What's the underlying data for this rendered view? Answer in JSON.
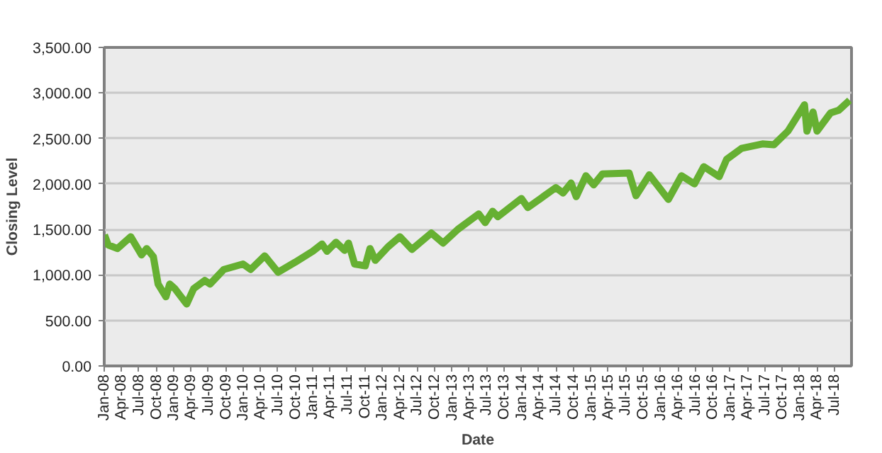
{
  "chart_data": {
    "type": "line",
    "xlabel": "Date",
    "ylabel": "Closing Level",
    "grid": "y",
    "marker": "none",
    "line_style": "solid",
    "xlim": [
      "2008-01-01",
      "2018-09-30"
    ],
    "xticks": [
      {
        "value": "2008-01-01",
        "label": "Jan-08"
      },
      {
        "value": "2008-04-01",
        "label": "Apr-08"
      },
      {
        "value": "2008-07-01",
        "label": "Jul-08"
      },
      {
        "value": "2008-10-01",
        "label": "Oct-08"
      },
      {
        "value": "2009-01-01",
        "label": "Jan-09"
      },
      {
        "value": "2009-04-01",
        "label": "Apr-09"
      },
      {
        "value": "2009-07-01",
        "label": "Jul-09"
      },
      {
        "value": "2009-10-01",
        "label": "Oct-09"
      },
      {
        "value": "2010-01-01",
        "label": "Jan-10"
      },
      {
        "value": "2010-04-01",
        "label": "Apr-10"
      },
      {
        "value": "2010-07-01",
        "label": "Jul-10"
      },
      {
        "value": "2010-10-01",
        "label": "Oct-10"
      },
      {
        "value": "2011-01-01",
        "label": "Jan-11"
      },
      {
        "value": "2011-04-01",
        "label": "Apr-11"
      },
      {
        "value": "2011-07-01",
        "label": "Jul-11"
      },
      {
        "value": "2011-10-01",
        "label": "Oct-11"
      },
      {
        "value": "2012-01-01",
        "label": "Jan-12"
      },
      {
        "value": "2012-04-01",
        "label": "Apr-12"
      },
      {
        "value": "2012-07-01",
        "label": "Jul-12"
      },
      {
        "value": "2012-10-01",
        "label": "Oct-12"
      },
      {
        "value": "2013-01-01",
        "label": "Jan-13"
      },
      {
        "value": "2013-04-01",
        "label": "Apr-13"
      },
      {
        "value": "2013-07-01",
        "label": "Jul-13"
      },
      {
        "value": "2013-10-01",
        "label": "Oct-13"
      },
      {
        "value": "2014-01-01",
        "label": "Jan-14"
      },
      {
        "value": "2014-04-01",
        "label": "Apr-14"
      },
      {
        "value": "2014-07-01",
        "label": "Jul-14"
      },
      {
        "value": "2014-10-01",
        "label": "Oct-14"
      },
      {
        "value": "2015-01-01",
        "label": "Jan-15"
      },
      {
        "value": "2015-04-01",
        "label": "Apr-15"
      },
      {
        "value": "2015-07-01",
        "label": "Jul-15"
      },
      {
        "value": "2015-10-01",
        "label": "Oct-15"
      },
      {
        "value": "2016-01-01",
        "label": "Jan-16"
      },
      {
        "value": "2016-04-01",
        "label": "Apr-16"
      },
      {
        "value": "2016-07-01",
        "label": "Jul-16"
      },
      {
        "value": "2016-10-01",
        "label": "Oct-16"
      },
      {
        "value": "2017-01-01",
        "label": "Jan-17"
      },
      {
        "value": "2017-04-01",
        "label": "Apr-17"
      },
      {
        "value": "2017-07-01",
        "label": "Jul-17"
      },
      {
        "value": "2017-10-01",
        "label": "Oct-17"
      },
      {
        "value": "2018-01-01",
        "label": "Jan-18"
      },
      {
        "value": "2018-04-01",
        "label": "Apr-18"
      },
      {
        "value": "2018-07-01",
        "label": "Jul-18"
      }
    ],
    "ylim": [
      0,
      3500
    ],
    "yticks": [
      {
        "value": 0,
        "label": "0.00"
      },
      {
        "value": 500,
        "label": "500.00"
      },
      {
        "value": 1000,
        "label": "1,000.00"
      },
      {
        "value": 1500,
        "label": "1,500.00"
      },
      {
        "value": 2000,
        "label": "2,000.00"
      },
      {
        "value": 2500,
        "label": "2,500.00"
      },
      {
        "value": 3000,
        "label": "3,000.00"
      },
      {
        "value": 3500,
        "label": "3,500.00"
      }
    ],
    "series": [
      {
        "color": "#66b032",
        "x": [
          "2008-01-02",
          "2008-01-22",
          "2008-03-10",
          "2008-05-19",
          "2008-07-15",
          "2008-08-11",
          "2008-09-15",
          "2008-10-10",
          "2008-11-20",
          "2008-12-10",
          "2009-01-06",
          "2009-03-09",
          "2009-04-15",
          "2009-06-12",
          "2009-07-10",
          "2009-09-20",
          "2009-12-30",
          "2010-02-08",
          "2010-04-23",
          "2010-07-02",
          "2010-09-30",
          "2010-12-31",
          "2011-02-18",
          "2011-03-16",
          "2011-05-02",
          "2011-06-16",
          "2011-07-07",
          "2011-08-08",
          "2011-10-03",
          "2011-10-28",
          "2011-11-25",
          "2012-01-31",
          "2012-04-02",
          "2012-06-04",
          "2012-09-14",
          "2012-11-15",
          "2013-01-31",
          "2013-05-21",
          "2013-06-24",
          "2013-08-02",
          "2013-08-30",
          "2013-12-31",
          "2014-02-03",
          "2014-06-30",
          "2014-08-07",
          "2014-09-18",
          "2014-10-15",
          "2014-12-05",
          "2015-01-15",
          "2015-03-02",
          "2015-07-20",
          "2015-08-25",
          "2015-11-03",
          "2016-02-11",
          "2016-04-20",
          "2016-06-27",
          "2016-08-15",
          "2016-11-04",
          "2016-12-13",
          "2017-03-01",
          "2017-06-19",
          "2017-08-18",
          "2017-10-31",
          "2018-01-26",
          "2018-02-08",
          "2018-03-12",
          "2018-04-02",
          "2018-06-12",
          "2018-07-25",
          "2018-09-20"
        ],
        "values": [
          1440,
          1330,
          1290,
          1420,
          1220,
          1290,
          1200,
          900,
          760,
          900,
          850,
          680,
          850,
          940,
          900,
          1060,
          1120,
          1060,
          1210,
          1030,
          1140,
          1260,
          1340,
          1260,
          1360,
          1270,
          1350,
          1120,
          1100,
          1290,
          1160,
          1310,
          1420,
          1280,
          1460,
          1350,
          1500,
          1670,
          1575,
          1700,
          1640,
          1840,
          1740,
          1960,
          1900,
          2010,
          1860,
          2090,
          1990,
          2110,
          2120,
          1870,
          2100,
          1830,
          2090,
          2000,
          2190,
          2080,
          2270,
          2390,
          2440,
          2430,
          2580,
          2870,
          2580,
          2790,
          2580,
          2780,
          2810,
          2920
        ]
      }
    ]
  }
}
